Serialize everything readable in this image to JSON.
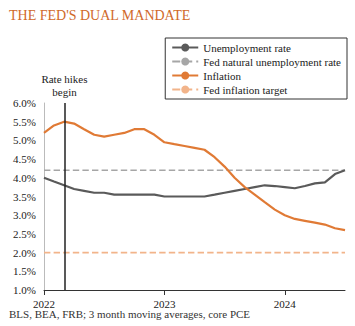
{
  "chart_data": {
    "type": "line",
    "title": "THE FED'S DUAL MANDATE",
    "source": "BLS, BEA, FRB; 3 month moving averages, core PCE",
    "x": [
      2022,
      2022.083,
      2022.167,
      2022.25,
      2022.333,
      2022.417,
      2022.5,
      2022.583,
      2022.667,
      2022.75,
      2022.833,
      2022.917,
      2023,
      2023.083,
      2023.167,
      2023.25,
      2023.333,
      2023.417,
      2023.5,
      2023.583,
      2023.667,
      2023.75,
      2023.833,
      2023.917,
      2024,
      2024.083,
      2024.167,
      2024.25,
      2024.333,
      2024.417,
      2024.5
    ],
    "xlim": [
      2022,
      2024.5
    ],
    "xticks": [
      2022,
      2023,
      2024
    ],
    "ylim": [
      1,
      6
    ],
    "yticks": [
      {
        "value": 1,
        "label": "1.0%"
      },
      {
        "value": 1.5,
        "label": "1.5%"
      },
      {
        "value": 2,
        "label": "2.0%"
      },
      {
        "value": 2.5,
        "label": "2.5%"
      },
      {
        "value": 3,
        "label": "3.0%"
      },
      {
        "value": 3.5,
        "label": "3.5%"
      },
      {
        "value": 4,
        "label": "4.0%"
      },
      {
        "value": 4.5,
        "label": "4.5%"
      },
      {
        "value": 5,
        "label": "5.0%"
      },
      {
        "value": 5.5,
        "label": "5.5%"
      },
      {
        "value": 6,
        "label": "6.0%"
      }
    ],
    "grid": false,
    "legend": "top right",
    "annotations": [
      {
        "text": "Rate hikes begin",
        "x": 2022.167
      }
    ],
    "series": [
      {
        "name": "Unemployment rate",
        "color": "#5a5a5a",
        "line_style": "solid",
        "values": [
          4.0,
          3.9,
          3.8,
          3.7,
          3.65,
          3.6,
          3.6,
          3.55,
          3.55,
          3.55,
          3.55,
          3.55,
          3.5,
          3.5,
          3.5,
          3.5,
          3.5,
          3.55,
          3.6,
          3.65,
          3.7,
          3.75,
          3.8,
          3.78,
          3.75,
          3.72,
          3.78,
          3.85,
          3.88,
          4.1,
          4.2
        ]
      },
      {
        "name": "Fed natural unemployment rate",
        "color": "#a6a6a6",
        "line_style": "dashed",
        "values": [
          4.2,
          4.2,
          4.2,
          4.2,
          4.2,
          4.2,
          4.2,
          4.2,
          4.2,
          4.2,
          4.2,
          4.2,
          4.2,
          4.2,
          4.2,
          4.2,
          4.2,
          4.2,
          4.2,
          4.2,
          4.2,
          4.2,
          4.2,
          4.2,
          4.2,
          4.2,
          4.2,
          4.2,
          4.2,
          4.2,
          4.2
        ]
      },
      {
        "name": "Inflation",
        "color": "#e07a35",
        "line_style": "solid",
        "values": [
          5.2,
          5.4,
          5.5,
          5.45,
          5.3,
          5.15,
          5.1,
          5.15,
          5.2,
          5.3,
          5.3,
          5.15,
          4.95,
          4.9,
          4.85,
          4.8,
          4.75,
          4.55,
          4.3,
          4.0,
          3.75,
          3.55,
          3.35,
          3.15,
          3.0,
          2.9,
          2.85,
          2.8,
          2.75,
          2.65,
          2.6
        ]
      },
      {
        "name": "Fed inflation target",
        "color": "#f2b48a",
        "line_style": "dashed",
        "values": [
          2.0,
          2.0,
          2.0,
          2.0,
          2.0,
          2.0,
          2.0,
          2.0,
          2.0,
          2.0,
          2.0,
          2.0,
          2.0,
          2.0,
          2.0,
          2.0,
          2.0,
          2.0,
          2.0,
          2.0,
          2.0,
          2.0,
          2.0,
          2.0,
          2.0,
          2.0,
          2.0,
          2.0,
          2.0,
          2.0,
          2.0
        ]
      }
    ]
  }
}
